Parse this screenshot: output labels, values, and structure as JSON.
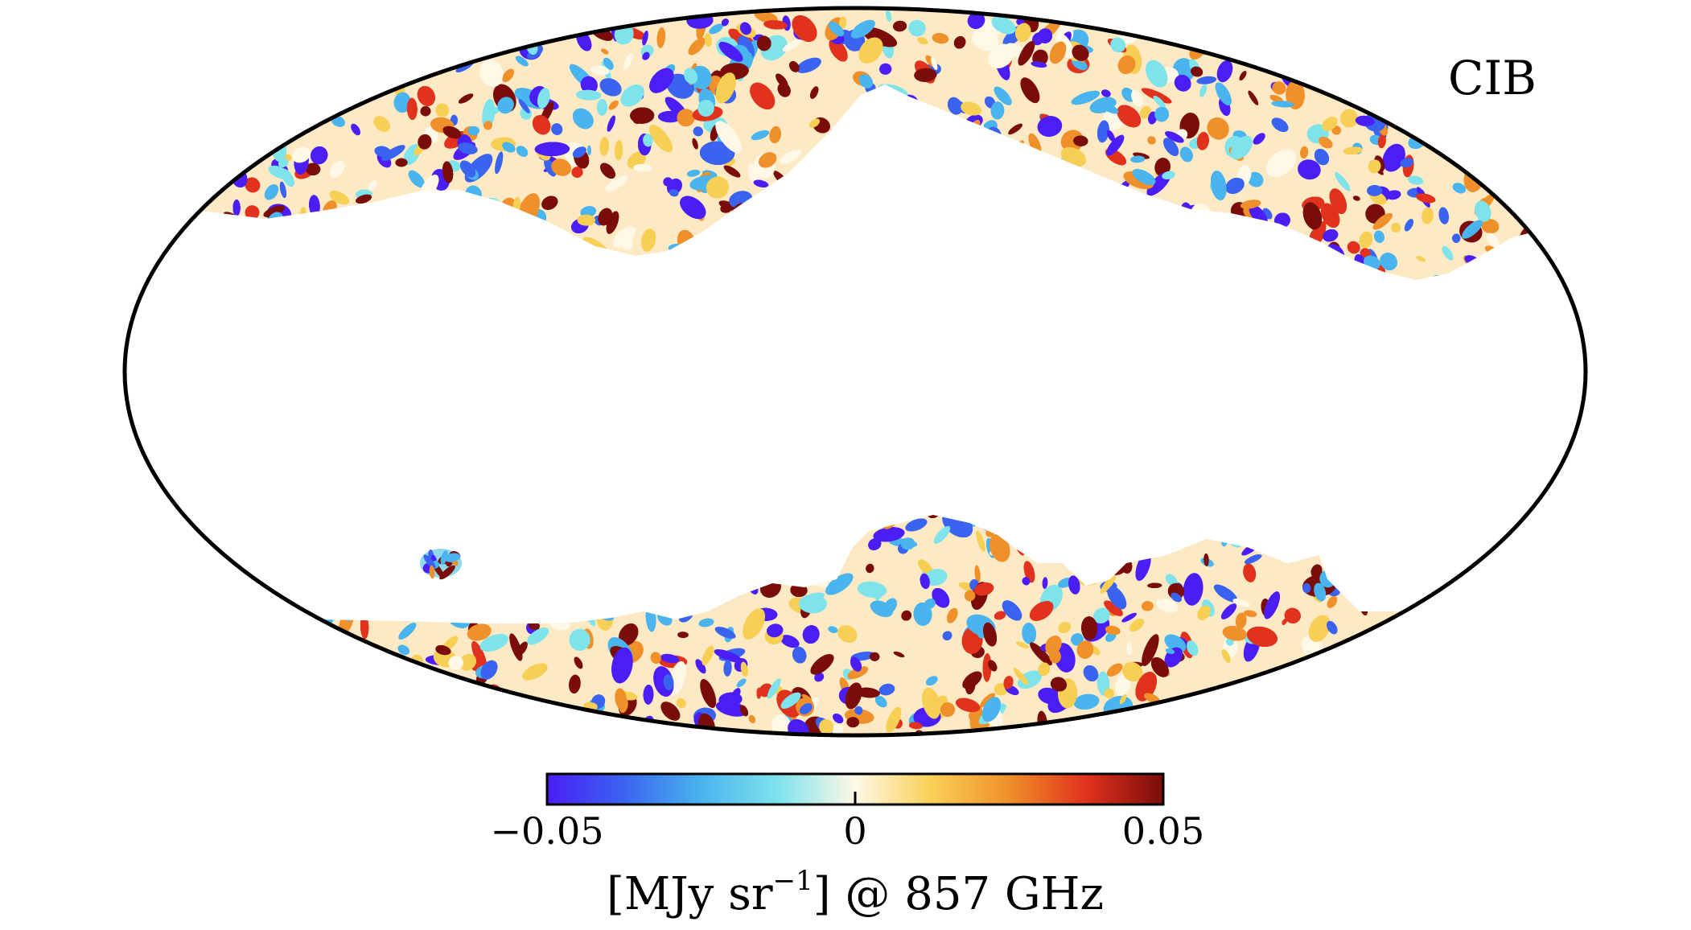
{
  "map": {
    "label": "CIB",
    "projection": "mollweide",
    "masked_region_color": "#ffffff",
    "outline_color": "#000000"
  },
  "colorbar": {
    "min_label": "−0.05",
    "mid_label": "0",
    "max_label": "0.05",
    "min": -0.05,
    "max": 0.05,
    "unit_prefix": "[MJy sr",
    "unit_exponent": "−1",
    "unit_suffix": "] @ 857 GHz",
    "colormap": [
      "#4a1ef5",
      "#3a64f0",
      "#49b4ee",
      "#7fe3ec",
      "#fff8e6",
      "#f8cf55",
      "#f0902a",
      "#e0321d",
      "#7a0d0a"
    ]
  }
}
